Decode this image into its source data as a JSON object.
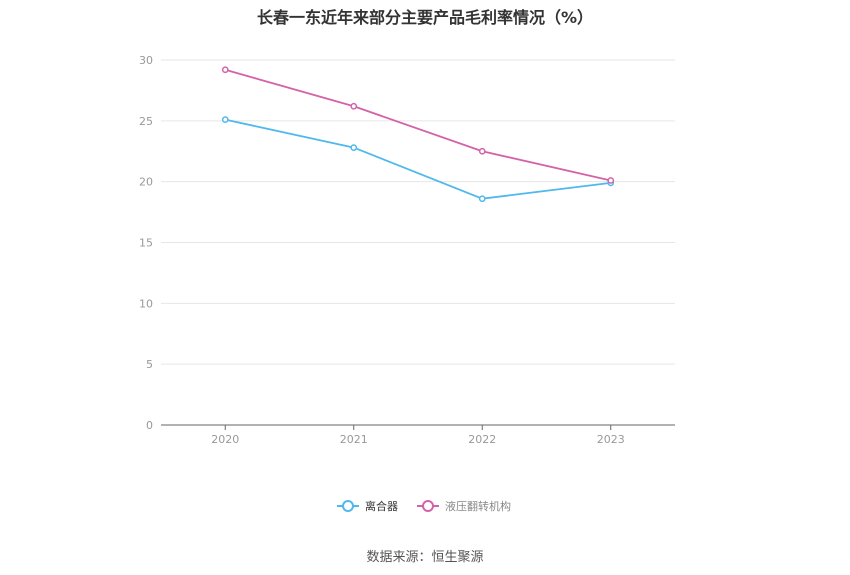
{
  "chart_data": {
    "type": "line",
    "title": "长春一东近年来部分主要产品毛利率情况（%）",
    "categories": [
      "2020",
      "2021",
      "2022",
      "2023"
    ],
    "y_ticks": [
      "0",
      "5",
      "10",
      "15",
      "20",
      "25",
      "30"
    ],
    "ylim": [
      0,
      30
    ],
    "grid": true,
    "legend_position": "bottom",
    "series": [
      {
        "name": "离合器",
        "color": "#4fb8ec",
        "values": [
          25.1,
          22.8,
          18.6,
          19.9
        ]
      },
      {
        "name": "液压翻转机构",
        "color": "#d462a8",
        "values": [
          29.2,
          26.2,
          22.5,
          20.1
        ]
      }
    ]
  },
  "source": "数据来源：恒生聚源"
}
